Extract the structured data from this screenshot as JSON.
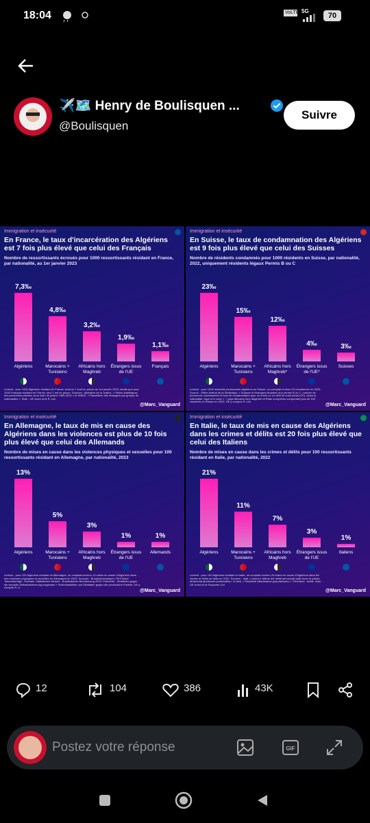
{
  "status_bar": {
    "time": "18:04",
    "network_badge": "VoLTE",
    "network": "5G",
    "battery": "70"
  },
  "post": {
    "author": "✈️🗺️ Henry de Boulisquen ...",
    "handle": "@Boulisquen",
    "follow": "Suivre"
  },
  "chart_data": [
    {
      "type": "bar",
      "tag": "Immigration et insécurité",
      "title": "En France, le taux d'incarcération des Algériens est 7 fois plus élevé que celui des Français",
      "subtitle": "Nombre de ressortissants écroués pour 1000 ressortissants résidant en France, par nationalité, au 1er janvier 2023",
      "categories": [
        "Algériens",
        "Marocains + Tunisiens",
        "Africains hors Maghreb",
        "Étrangers issus de l'UE",
        "Français"
      ],
      "values": [
        7.3,
        4.8,
        3.2,
        1.9,
        1.1
      ],
      "value_labels": [
        "7,3‰",
        "4,8‰",
        "3,2‰",
        "1,9‰",
        "1,1‰"
      ],
      "color": "#ff1fb4",
      "footnote": "Lecture : pour 1000 Algériens résidant en France, environ 7 sont en prison au 1er janvier 2023, tandis que pour 1000 Français résidant en France, seul 1 est en prison. Sources : Ministère de la Justice, « Séries statistiques des personnes placées sous main de justice 1980-2023 » et INSEE, « Répartition des étrangers par groupe de nationalités ». Note : UE inclut ici le R.-Uni",
      "credit": "@Marc_Vanguard"
    },
    {
      "type": "bar",
      "tag": "Immigration et insécurité",
      "title": "En Suisse, le taux de condamnation des Algériens est 9 fois plus élevé que celui des Suisses",
      "subtitle": "Nombre de résidents condamnés pour 1000 résidents en Suisse, par nationalité, 2022, uniquement résidents légaux Permis B ou C",
      "categories": [
        "Algériens",
        "Marocains + Tunisiens",
        "Africains hors Maghreb*",
        "Étrangers issus de l'UE*",
        "Suisses"
      ],
      "values": [
        23,
        15,
        12,
        4,
        3
      ],
      "value_labels": [
        "23‰",
        "15‰",
        "12‰",
        "4‰",
        "3‰"
      ],
      "color": "#ff1fb4",
      "footnote": "Lecture : pour 1000 résidents permanents algériens en Suisse, on comptait environ 23 condamnés en 2022. Source : Office fédéral de la Statistique, « Suisses et étrangers titulaires d'un permis B ou C, nombre de personnes condamnées et taux de condamnation pour un crime ou un délit du code pénal (CP), selon la nationalité, l'âge et le sexe ». * pays africains hors Maghreb et États européens comportant plus de 100 résidents en Suisse en 2022, UE y compris R.-Uni",
      "credit": "@Marc_Vanguard"
    },
    {
      "type": "bar",
      "tag": "Immigration et insécurité",
      "title": "En Allemagne, le taux de mis en cause des Algériens dans les violences est plus de 10 fois plus élevé que celui des Allemands",
      "subtitle": "Nombre de mises en cause dans les violences physiques et sexuelles pour 100 ressortissants résidant en Allemagne, par nationalité, 2023",
      "categories": [
        "Algériens",
        "Marocains + Tunisiens",
        "Africains hors Maghreb",
        "Étrangers issus de l'UE",
        "Allemands"
      ],
      "values": [
        13,
        5,
        3,
        1,
        1
      ],
      "value_labels": [
        "13%",
        "5%",
        "3%",
        "1%",
        "1%"
      ],
      "color": "#ff1fb4",
      "footnote": "Lecture : pour 100 Algériens résidant en Allemagne, on comptait environ 13 mises en cause d'Algériens dans des violences physiques et sexuelles en Allemagne en 2023. Sources : Bundeskriminalamt, PKS Bund Tatverdächtige ; Destatis, Statistischer Bericht - Ausländische Bevölkerung 2023. Périmètre : Straftaten gegen die sexuelle Selbstbestimmung insgesamt + Rohheitsdelikte und Straftaten gegen die persönliche Freiheit. UE y compris R.-U.",
      "credit": "@Marc_Vanguard"
    },
    {
      "type": "bar",
      "tag": "Immigration et insécurité",
      "title": "En Italie, le taux de mis en cause des Algériens dans les crimes et délits est 20 fois plus élevé que celui des Italiens",
      "subtitle": "Nombre de mises en cause dans les crimes et délits pour 100 ressortissants résidant en Italie, par nationalité, 2022",
      "categories": [
        "Algériens",
        "Marocains + Tunisiens",
        "Africains hors Maghreb",
        "Étrangers issus de l'UE",
        "Italiens"
      ],
      "values": [
        21,
        11,
        7,
        3,
        1
      ],
      "value_labels": [
        "21%",
        "11%",
        "7%",
        "3%",
        "1%"
      ],
      "color": "#ff1fb4",
      "footnote": "Lecture : pour 100 Algériens résidant en Italie, on comptait environ 20 mises en cause d'Algériens dans les crimes et délits en Italie en 2022. Sources : Istat, « Autori e vittime dei delitti denunciati dalle forze di polizia all'autorità giudiziaria (criminalità) » & Istat, « Residenti cittadinanza (popolazione) ». Périmètre : totale. Note : UE inclut ici le Royaume-Uni",
      "credit": "@Marc_Vanguard"
    }
  ],
  "actions": {
    "replies": "12",
    "reposts": "104",
    "likes": "386",
    "views": "43K"
  },
  "reply_box": {
    "placeholder": "Postez votre réponse"
  }
}
